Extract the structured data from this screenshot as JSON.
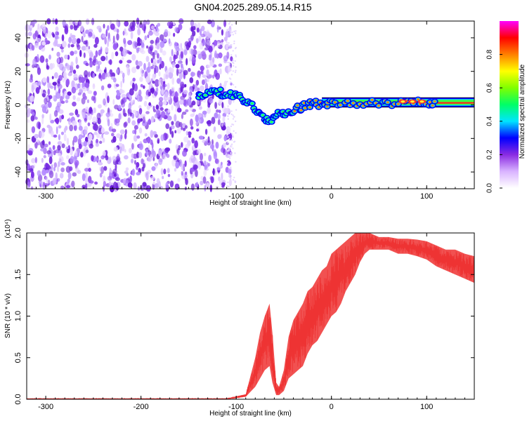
{
  "figure_title": "GN04.2025.289.05.14.R15",
  "chart_data": [
    {
      "type": "heatmap",
      "xlabel": "Height of straight line (km)",
      "ylabel": "Frequency (Hz)",
      "xlim": [
        -320,
        150
      ],
      "ylim": [
        -50,
        50
      ],
      "x_ticks": [
        -300,
        -200,
        -100,
        0,
        100
      ],
      "y_ticks": [
        -40,
        -20,
        0,
        20,
        40
      ],
      "colorbar": {
        "label": "Normalized spectral amplitude",
        "range": [
          0.0,
          1.0
        ],
        "ticks": [
          "0.0",
          "0.2",
          "0.4",
          "0.6",
          "0.8"
        ],
        "colors": [
          "#ffffff",
          "#d9b3ff",
          "#8a2be2",
          "#0000ff",
          "#00e5ff",
          "#00ff66",
          "#80ff00",
          "#ffff00",
          "#ff8000",
          "#ff0000",
          "#ff00ff"
        ]
      },
      "noise_region": {
        "x_range": [
          -320,
          -105
        ],
        "y_range": [
          -50,
          50
        ],
        "amplitude": [
          0.05,
          0.25
        ]
      },
      "signal_track": [
        {
          "x": -140,
          "y": 6
        },
        {
          "x": -130,
          "y": 7
        },
        {
          "x": -120,
          "y": 8
        },
        {
          "x": -110,
          "y": 6
        },
        {
          "x": -100,
          "y": 5
        },
        {
          "x": -90,
          "y": 3
        },
        {
          "x": -80,
          "y": -3
        },
        {
          "x": -72,
          "y": -8
        },
        {
          "x": -65,
          "y": -10
        },
        {
          "x": -58,
          "y": -6
        },
        {
          "x": -50,
          "y": -5
        },
        {
          "x": -40,
          "y": -3
        },
        {
          "x": -30,
          "y": -1
        },
        {
          "x": -20,
          "y": 1
        },
        {
          "x": -10,
          "y": 0
        },
        {
          "x": 0,
          "y": 1
        },
        {
          "x": 20,
          "y": 1
        },
        {
          "x": 40,
          "y": 1
        },
        {
          "x": 60,
          "y": 1
        },
        {
          "x": 80,
          "y": 2
        },
        {
          "x": 100,
          "y": 1
        },
        {
          "x": 110,
          "y": 1
        }
      ],
      "line_band": {
        "x_range": [
          -10,
          150
        ],
        "y_range": [
          -0.5,
          3.5
        ]
      }
    },
    {
      "type": "line",
      "xlabel": "Height of straight line (km)",
      "ylabel": "SNR (10 * v/v)",
      "y_multiplier": "(x10⁴)",
      "xlim": [
        -320,
        150
      ],
      "ylim": [
        0,
        2.0
      ],
      "x_ticks": [
        -300,
        -200,
        -100,
        0,
        100
      ],
      "y_ticks": [
        "0.0",
        "0.5",
        "1.0",
        "1.5",
        "2.0"
      ],
      "color": "#ee3333",
      "series": [
        {
          "x": [
            -320,
            -200,
            -110,
            -90,
            -80,
            -75,
            -70,
            -65,
            -62,
            -58,
            -55,
            -50,
            -45,
            -40,
            -35,
            -30,
            -25,
            -20,
            -15,
            -10,
            -5,
            0,
            5,
            10,
            15,
            20,
            25,
            30,
            35,
            40,
            50,
            60,
            70,
            80,
            90,
            100,
            110,
            120,
            130,
            140,
            150
          ],
          "y_low": [
            0.0,
            0.0,
            0.0,
            0.03,
            0.15,
            0.25,
            0.35,
            0.4,
            0.2,
            0.05,
            0.05,
            0.1,
            0.25,
            0.3,
            0.35,
            0.4,
            0.55,
            0.65,
            0.7,
            0.8,
            0.9,
            1.0,
            1.05,
            1.15,
            1.3,
            1.4,
            1.5,
            1.65,
            1.75,
            1.8,
            1.8,
            1.8,
            1.75,
            1.75,
            1.72,
            1.68,
            1.6,
            1.55,
            1.5,
            1.45,
            1.4
          ],
          "y_high": [
            0.01,
            0.01,
            0.01,
            0.06,
            0.5,
            0.8,
            1.0,
            1.15,
            0.8,
            0.2,
            0.15,
            0.35,
            0.75,
            0.95,
            1.05,
            1.15,
            1.3,
            1.35,
            1.45,
            1.55,
            1.6,
            1.75,
            1.8,
            1.85,
            1.9,
            1.95,
            2.0,
            2.0,
            2.0,
            2.0,
            1.95,
            1.95,
            1.93,
            1.93,
            1.92,
            1.9,
            1.85,
            1.8,
            1.8,
            1.75,
            1.72
          ]
        }
      ]
    }
  ]
}
